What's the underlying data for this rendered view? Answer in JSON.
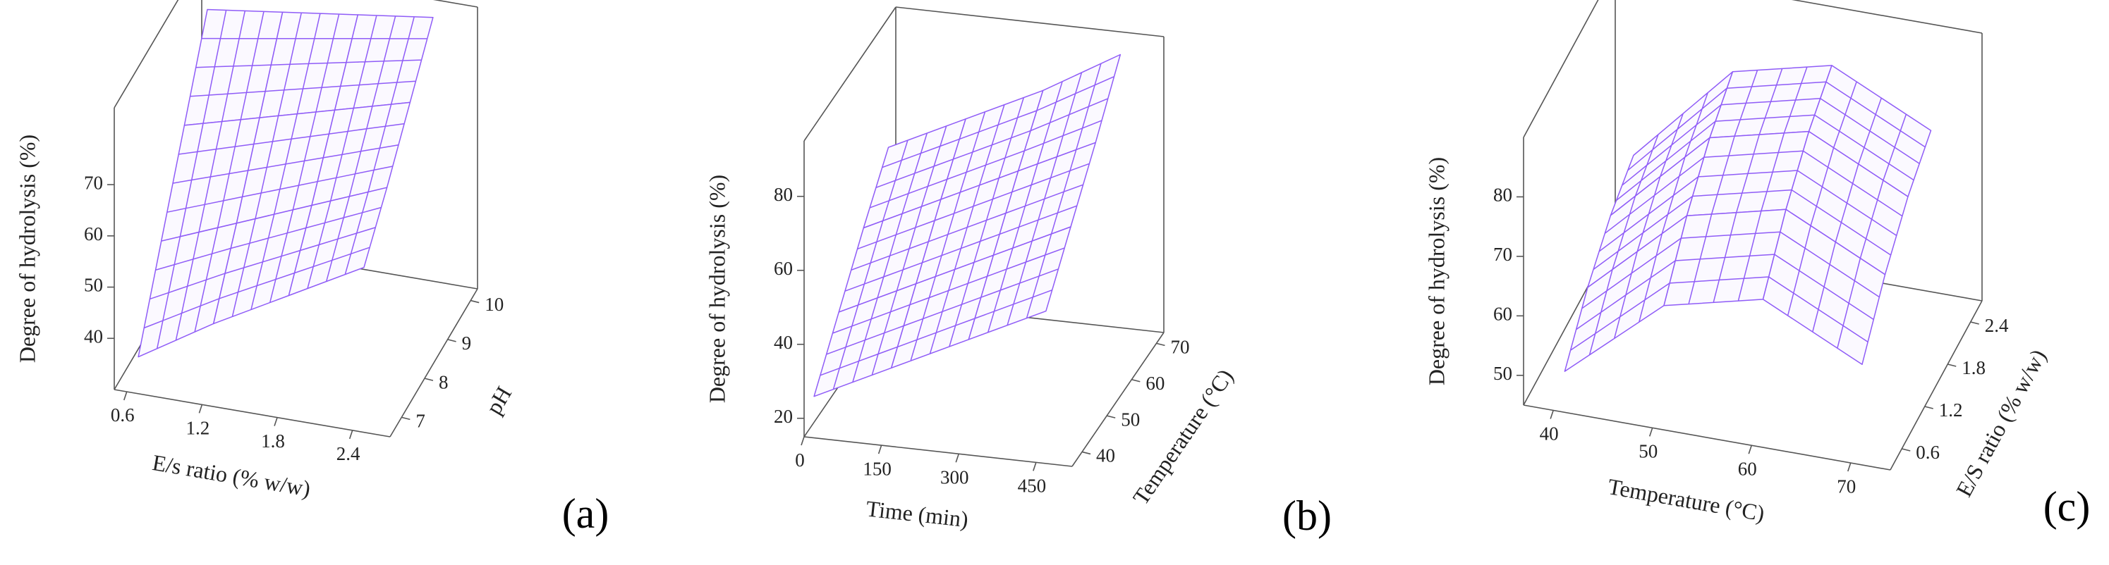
{
  "chart_data": [
    {
      "type": "surface3d",
      "panel_label": "(a)",
      "xlabel": "E/s ratio (% w/w)",
      "ylabel": "pH",
      "zlabel": "Degree of hydrolysis (%)",
      "xlim": [
        0.5,
        2.7
      ],
      "ylim": [
        6.5,
        10.3
      ],
      "zlim": [
        30,
        85
      ],
      "xticks": [
        0.6,
        1.2,
        1.8,
        2.4
      ],
      "yticks": [
        7,
        8,
        9,
        10
      ],
      "zticks": [
        40,
        50,
        60,
        70
      ],
      "x": [
        0.6,
        1.2,
        1.8,
        2.4
      ],
      "y": [
        7,
        8,
        9,
        10
      ],
      "z": [
        [
          33,
          42,
          50,
          58
        ],
        [
          48,
          54,
          60,
          66
        ],
        [
          63,
          67,
          71,
          75
        ],
        [
          78,
          80,
          82,
          84
        ]
      ],
      "color": "#8f5cf7"
    },
    {
      "type": "surface3d",
      "panel_label": "(b)",
      "xlabel": "Time (min)",
      "ylabel": "Temperature (°C)",
      "zlabel": "Degree of hydrolysis (%)",
      "xlim": [
        0,
        520
      ],
      "ylim": [
        36,
        73
      ],
      "zlim": [
        15,
        95
      ],
      "xticks": [
        0,
        150,
        300,
        450
      ],
      "yticks": [
        40,
        50,
        60,
        70
      ],
      "zticks": [
        20,
        40,
        60,
        80
      ],
      "x": [
        0,
        150,
        300,
        450
      ],
      "y": [
        40,
        50,
        60,
        70
      ],
      "z": [
        [
          22,
          32,
          42,
          52
        ],
        [
          35,
          45,
          55,
          65
        ],
        [
          48,
          58,
          68,
          78
        ],
        [
          60,
          70,
          80,
          92
        ]
      ],
      "color": "#8f5cf7"
    },
    {
      "type": "surface3d",
      "panel_label": "(c)",
      "xlabel": "Temperature (°C)",
      "ylabel": "E/S ratio (% w/w)",
      "zlabel": "Degree of hydrolysis (%)",
      "xlim": [
        37,
        74
      ],
      "ylim": [
        0.3,
        2.7
      ],
      "zlim": [
        45,
        90
      ],
      "xticks": [
        40,
        50,
        60,
        70
      ],
      "yticks": [
        0.6,
        1.2,
        1.8,
        2.4
      ],
      "zticks": [
        50,
        60,
        70,
        80
      ],
      "x": [
        40,
        50,
        60,
        70
      ],
      "y": [
        0.6,
        1.2,
        1.8,
        2.4
      ],
      "z": [
        [
          48,
          62,
          66,
          58
        ],
        [
          55,
          70,
          74,
          66
        ],
        [
          60,
          76,
          80,
          72
        ],
        [
          63,
          80,
          84,
          76
        ]
      ],
      "color": "#8f5cf7"
    }
  ]
}
